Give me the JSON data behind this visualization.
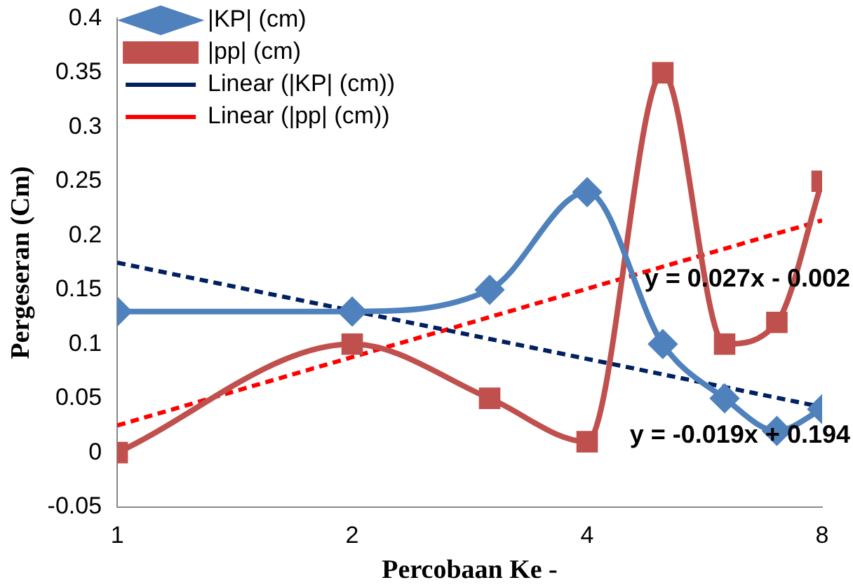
{
  "chart_data": {
    "type": "line",
    "xlabel": "Percobaan Ke -",
    "ylabel": "Pergeseran (Cm)",
    "log": "x",
    "xlim": [
      1,
      8
    ],
    "xticks": [
      1,
      2,
      4,
      8
    ],
    "ylim": [
      -0.05,
      0.4
    ],
    "yticks": [
      -0.05,
      0,
      0.05,
      0.1,
      0.15,
      0.2,
      0.25,
      0.3,
      0.35,
      0.4
    ],
    "grid": false,
    "legend": "top left",
    "series": [
      {
        "name": "|KP| (cm)",
        "color": "#4f81bd",
        "marker": "diamond",
        "line_style": "solid",
        "x": [
          1,
          2,
          3,
          4,
          5,
          6,
          7,
          8
        ],
        "values": [
          0.13,
          0.13,
          0.15,
          0.24,
          0.1,
          0.05,
          0.02,
          0.04
        ]
      },
      {
        "name": "|pp| (cm)",
        "color": "#c0504d",
        "marker": "square",
        "line_style": "solid",
        "x": [
          1,
          2,
          3,
          4,
          5,
          6,
          7,
          8
        ],
        "values": [
          0,
          0.1,
          0.05,
          0.01,
          0.35,
          0.1,
          0.12,
          0.25
        ]
      },
      {
        "name": "Linear (|KP| (cm))",
        "color": "#002060",
        "marker": "none",
        "line_style": "dashed",
        "x": [
          1,
          8
        ],
        "values": [
          0.175,
          0.042
        ]
      },
      {
        "name": "Linear (|pp| (cm))",
        "color": "#ff0000",
        "marker": "none",
        "line_style": "dashed",
        "x": [
          1,
          8
        ],
        "values": [
          0.025,
          0.214
        ]
      }
    ],
    "annotations": [
      "y = 0.027x - 0.002",
      "y = -0.019x + 0.194"
    ]
  }
}
